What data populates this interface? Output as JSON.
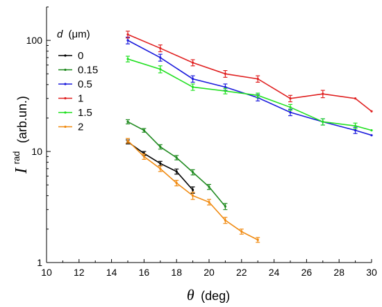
{
  "chart_data": {
    "type": "line",
    "xlabel": {
      "symbol": "θ",
      "unit": "(deg)"
    },
    "ylabel": {
      "symbol": "I",
      "superscript": "rad",
      "unit": "(arb.un.)"
    },
    "xlim": [
      10,
      30
    ],
    "ylim": [
      1,
      200
    ],
    "yscale": "log",
    "x_ticks": [
      "10",
      "12",
      "14",
      "16",
      "18",
      "20",
      "22",
      "24",
      "26",
      "28",
      "30"
    ],
    "y_ticks": [
      {
        "value": 1,
        "label": "1"
      },
      {
        "value": 10,
        "label": "10"
      },
      {
        "value": 100,
        "label": "100"
      }
    ],
    "legend": {
      "title_symbol": "d",
      "title_unit": "(μm)",
      "position": "top-left"
    },
    "series": [
      {
        "name": "0",
        "color": "#000000",
        "x": [
          15,
          16,
          17,
          18,
          19
        ],
        "y": [
          12.2,
          9.6,
          7.8,
          6.6,
          4.5
        ],
        "err": [
          0.5,
          0.4,
          0.35,
          0.35,
          0.3
        ]
      },
      {
        "name": "0.15",
        "color": "#1f8a1f",
        "x": [
          15,
          16,
          17,
          18,
          19,
          20,
          21
        ],
        "y": [
          18.5,
          15.5,
          11.0,
          8.8,
          6.5,
          4.8,
          3.2
        ],
        "err": [
          0.8,
          0.6,
          0.5,
          0.4,
          0.35,
          0.25,
          0.2
        ]
      },
      {
        "name": "0.5",
        "color": "#1a1adc",
        "x": [
          15,
          17,
          19,
          21,
          23,
          25,
          27,
          29,
          30
        ],
        "y": [
          100,
          70,
          45,
          38,
          30.5,
          22.5,
          18.5,
          15.5,
          14.0
        ],
        "err": [
          7,
          5,
          3,
          2.5,
          2,
          1.5,
          1.2,
          1.0,
          0
        ]
      },
      {
        "name": "1",
        "color": "#e02020",
        "x": [
          15,
          17,
          19,
          21,
          23,
          25,
          27,
          29,
          30
        ],
        "y": [
          113,
          85,
          63,
          50,
          45,
          30,
          33,
          30,
          23
        ],
        "err": [
          8,
          6,
          4,
          3.5,
          3,
          2,
          2.5,
          0,
          0
        ]
      },
      {
        "name": "1.5",
        "color": "#22e022",
        "x": [
          15,
          17,
          19,
          21,
          23,
          25,
          27,
          29,
          30
        ],
        "y": [
          68,
          55,
          38,
          35,
          32,
          25,
          18.5,
          17.0,
          15.5
        ],
        "err": [
          4,
          4,
          2.5,
          2,
          1.5,
          1.5,
          1.2,
          1.0,
          0
        ]
      },
      {
        "name": "2",
        "color": "#f08a10",
        "x": [
          15,
          16,
          17,
          18,
          19,
          20,
          21,
          22,
          23
        ],
        "y": [
          12.5,
          9.0,
          7.0,
          5.2,
          4.0,
          3.5,
          2.4,
          1.9,
          1.6
        ],
        "err": [
          0.6,
          0.5,
          0.4,
          0.3,
          0.3,
          0.2,
          0.15,
          0.1,
          0.08
        ]
      }
    ]
  }
}
